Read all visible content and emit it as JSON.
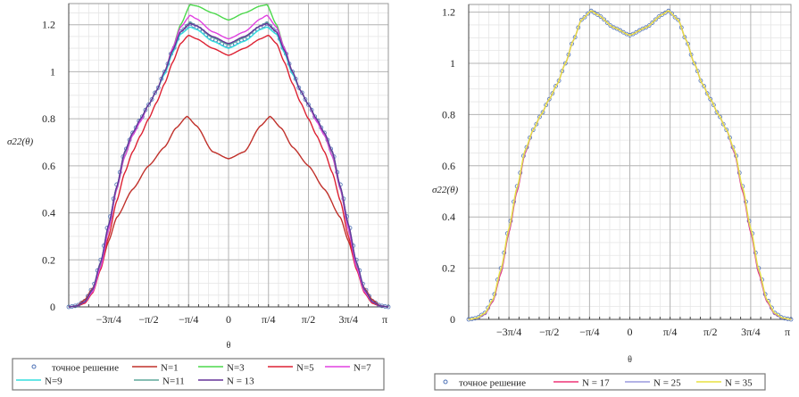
{
  "chart_data": [
    {
      "type": "line",
      "title": "",
      "xlabel": "θ",
      "ylabel": "σ22(θ)",
      "x_unit": "π",
      "xlim": [
        -1,
        1
      ],
      "ylim": [
        0,
        1.29
      ],
      "yticks": [
        0,
        0.2,
        0.4,
        0.6,
        0.8,
        1,
        1.2
      ],
      "ytick_labels": [
        "0",
        "0.2",
        "0.4",
        "0.6",
        "0.8",
        "1",
        "1.2"
      ],
      "xticks": [
        -0.75,
        -0.5,
        -0.25,
        0,
        0.25,
        0.5,
        0.75,
        1
      ],
      "xtick_labels": [
        "−3π/4",
        "−π/2",
        "−π/4",
        "0",
        "π/4",
        "π/2",
        "3π/4",
        "π"
      ],
      "grid": true,
      "legend_placement": "bottom",
      "symmetric": true,
      "series": [
        {
          "name": "точное решение",
          "style": "marker",
          "color": "#4a6fb5",
          "x": [
            0,
            0.1,
            0.2,
            0.24,
            0.3,
            0.35,
            0.4,
            0.45,
            0.5,
            0.55,
            0.6,
            0.65,
            0.7,
            0.75,
            0.8,
            0.85,
            0.9,
            0.95,
            1
          ],
          "y": [
            1.11,
            1.14,
            1.19,
            1.205,
            1.17,
            1.09,
            1.0,
            0.92,
            0.86,
            0.8,
            0.74,
            0.66,
            0.52,
            0.36,
            0.2,
            0.08,
            0.025,
            0.005,
            0
          ]
        },
        {
          "name": "N=1",
          "color": "#c0302a",
          "x": [
            0,
            0.1,
            0.2,
            0.26,
            0.33,
            0.4,
            0.5,
            0.6,
            0.7,
            0.75,
            0.8,
            0.85,
            0.9,
            0.95,
            1
          ],
          "y": [
            0.63,
            0.66,
            0.77,
            0.81,
            0.76,
            0.68,
            0.6,
            0.5,
            0.38,
            0.28,
            0.17,
            0.08,
            0.03,
            0.005,
            0
          ]
        },
        {
          "name": "N=3",
          "color": "#4cd84c",
          "x": [
            0,
            0.1,
            0.2,
            0.24,
            0.3,
            0.35,
            0.4,
            0.45,
            0.5,
            0.55,
            0.6,
            0.65,
            0.7,
            0.75,
            0.8,
            0.85,
            0.9,
            0.95,
            1
          ],
          "y": [
            1.22,
            1.25,
            1.28,
            1.285,
            1.2,
            1.1,
            1.0,
            0.92,
            0.86,
            0.8,
            0.73,
            0.64,
            0.5,
            0.33,
            0.18,
            0.07,
            0.02,
            0.004,
            0
          ]
        },
        {
          "name": "N=5",
          "color": "#dd2233",
          "x": [
            0,
            0.1,
            0.2,
            0.25,
            0.3,
            0.35,
            0.4,
            0.45,
            0.5,
            0.55,
            0.6,
            0.65,
            0.7,
            0.75,
            0.8,
            0.85,
            0.9,
            0.95,
            1
          ],
          "y": [
            1.07,
            1.1,
            1.14,
            1.155,
            1.12,
            1.04,
            0.95,
            0.87,
            0.8,
            0.73,
            0.66,
            0.57,
            0.45,
            0.3,
            0.16,
            0.06,
            0.015,
            0.003,
            0
          ]
        },
        {
          "name": "N=7",
          "color": "#e040e0",
          "x": [
            0,
            0.1,
            0.2,
            0.24,
            0.3,
            0.35,
            0.4,
            0.45,
            0.5,
            0.55,
            0.6,
            0.65,
            0.7,
            0.75,
            0.8,
            0.85,
            0.9,
            0.95,
            1
          ],
          "y": [
            1.14,
            1.17,
            1.225,
            1.24,
            1.19,
            1.1,
            1.0,
            0.92,
            0.86,
            0.79,
            0.73,
            0.64,
            0.5,
            0.33,
            0.17,
            0.065,
            0.02,
            0.004,
            0
          ]
        },
        {
          "name": "N=9",
          "color": "#33dede",
          "x": [
            0,
            0.1,
            0.2,
            0.24,
            0.3,
            0.35,
            0.4,
            0.45,
            0.5,
            0.55,
            0.6,
            0.65,
            0.7,
            0.75,
            0.8,
            0.85,
            0.9,
            0.95,
            1
          ],
          "y": [
            1.1,
            1.13,
            1.18,
            1.19,
            1.16,
            1.08,
            0.99,
            0.92,
            0.86,
            0.8,
            0.74,
            0.66,
            0.51,
            0.35,
            0.19,
            0.075,
            0.022,
            0.004,
            0
          ]
        },
        {
          "name": "N=11",
          "color": "#5fa89a",
          "x": [
            0,
            0.1,
            0.2,
            0.24,
            0.3,
            0.35,
            0.4,
            0.45,
            0.5,
            0.55,
            0.6,
            0.65,
            0.7,
            0.75,
            0.8,
            0.85,
            0.9,
            0.95,
            1
          ],
          "y": [
            1.115,
            1.145,
            1.195,
            1.21,
            1.17,
            1.09,
            1.0,
            0.92,
            0.86,
            0.8,
            0.74,
            0.655,
            0.51,
            0.35,
            0.19,
            0.075,
            0.022,
            0.004,
            0
          ]
        },
        {
          "name": "N = 13",
          "color": "#663399",
          "x": [
            0,
            0.1,
            0.2,
            0.24,
            0.3,
            0.35,
            0.4,
            0.45,
            0.5,
            0.55,
            0.6,
            0.65,
            0.7,
            0.75,
            0.8,
            0.85,
            0.9,
            0.95,
            1
          ],
          "y": [
            1.12,
            1.15,
            1.195,
            1.205,
            1.17,
            1.09,
            1.0,
            0.92,
            0.86,
            0.8,
            0.74,
            0.66,
            0.51,
            0.35,
            0.19,
            0.075,
            0.022,
            0.004,
            0
          ]
        }
      ]
    },
    {
      "type": "line",
      "title": "",
      "xlabel": "θ",
      "ylabel": "σ22(θ)",
      "x_unit": "π",
      "xlim": [
        -1,
        1
      ],
      "ylim": [
        0,
        1.23
      ],
      "yticks": [
        0,
        0.2,
        0.4,
        0.6,
        0.8,
        1,
        1.2
      ],
      "ytick_labels": [
        "0",
        "0.2",
        "0.4",
        "0.6",
        "0.8",
        "1",
        "1.2"
      ],
      "xticks": [
        -0.75,
        -0.5,
        -0.25,
        0,
        0.25,
        0.5,
        0.75,
        1
      ],
      "xtick_labels": [
        "−3π/4",
        "−π/2",
        "−π/4",
        "0",
        "π/4",
        "π/2",
        "3π/4",
        "π"
      ],
      "grid": true,
      "legend_placement": "bottom",
      "symmetric": true,
      "series": [
        {
          "name": "точное решение",
          "style": "marker",
          "color": "#4a6fb5",
          "x": [
            0,
            0.1,
            0.2,
            0.24,
            0.3,
            0.35,
            0.4,
            0.45,
            0.5,
            0.55,
            0.6,
            0.65,
            0.7,
            0.75,
            0.8,
            0.85,
            0.9,
            0.95,
            1
          ],
          "y": [
            1.11,
            1.14,
            1.19,
            1.205,
            1.17,
            1.09,
            1.0,
            0.92,
            0.86,
            0.8,
            0.74,
            0.66,
            0.52,
            0.36,
            0.2,
            0.08,
            0.025,
            0.005,
            0
          ]
        },
        {
          "name": "N = 17",
          "color": "#ee3377",
          "x": [
            0,
            0.1,
            0.2,
            0.24,
            0.3,
            0.35,
            0.4,
            0.45,
            0.5,
            0.55,
            0.6,
            0.65,
            0.7,
            0.75,
            0.8,
            0.85,
            0.9,
            0.95,
            1
          ],
          "y": [
            1.11,
            1.14,
            1.19,
            1.205,
            1.17,
            1.09,
            1.0,
            0.92,
            0.86,
            0.8,
            0.74,
            0.65,
            0.5,
            0.34,
            0.18,
            0.07,
            0.02,
            0.004,
            0
          ]
        },
        {
          "name": "N = 25",
          "color": "#9a9ade",
          "x": [
            0,
            0.1,
            0.2,
            0.24,
            0.3,
            0.35,
            0.4,
            0.45,
            0.5,
            0.55,
            0.6,
            0.65,
            0.7,
            0.75,
            0.8,
            0.85,
            0.9,
            0.95,
            1
          ],
          "y": [
            1.11,
            1.14,
            1.19,
            1.205,
            1.17,
            1.09,
            1.0,
            0.92,
            0.86,
            0.8,
            0.74,
            0.655,
            0.51,
            0.35,
            0.19,
            0.075,
            0.022,
            0.004,
            0
          ]
        },
        {
          "name": "N = 35",
          "color": "#e8e040",
          "x": [
            0,
            0.1,
            0.2,
            0.24,
            0.3,
            0.35,
            0.4,
            0.45,
            0.5,
            0.55,
            0.6,
            0.65,
            0.7,
            0.75,
            0.8,
            0.85,
            0.9,
            0.95,
            1
          ],
          "y": [
            1.11,
            1.14,
            1.19,
            1.205,
            1.17,
            1.09,
            1.0,
            0.92,
            0.86,
            0.8,
            0.74,
            0.66,
            0.515,
            0.355,
            0.195,
            0.078,
            0.024,
            0.005,
            0
          ]
        }
      ]
    }
  ]
}
